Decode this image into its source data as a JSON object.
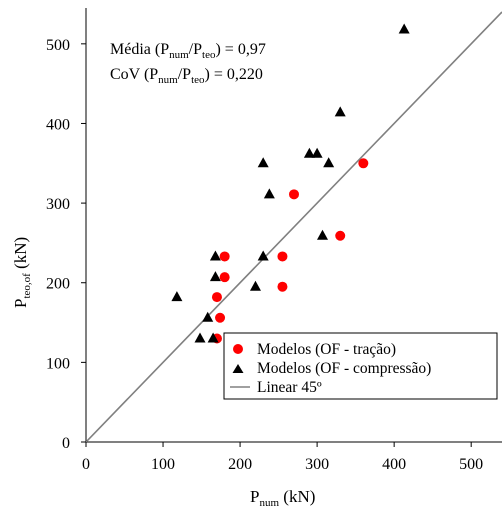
{
  "chart_data": {
    "type": "scatter",
    "xlabel": {
      "main": "P",
      "sub": "num",
      "unit": " (kN)"
    },
    "ylabel": {
      "main": "P",
      "sub": "teo,of",
      "unit": " (kN)"
    },
    "xlim": [
      0,
      540
    ],
    "ylim": [
      0,
      545
    ],
    "xticks": [
      "0",
      "100",
      "200",
      "300",
      "400",
      "500"
    ],
    "yticks": [
      "0",
      "100",
      "200",
      "300",
      "400",
      "500"
    ],
    "grid": false,
    "legend_position": "bottom-right",
    "annotations": [
      {
        "pre": "Média (P",
        "s1": "num",
        "mid": "/P",
        "s2": "teo",
        "post": ") = 0,97"
      },
      {
        "pre": "CoV (P",
        "s1": "num",
        "mid": "/P",
        "s2": "teo",
        "post": ") = 0,220"
      }
    ],
    "series": [
      {
        "name": "Modelos (OF - tração)",
        "marker": "circle",
        "color": "#ff0000",
        "points": [
          [
            170,
            130
          ],
          [
            174,
            156
          ],
          [
            170,
            182
          ],
          [
            180,
            207
          ],
          [
            180,
            233
          ],
          [
            255,
            233
          ],
          [
            255,
            195
          ],
          [
            270,
            311
          ],
          [
            330,
            259
          ],
          [
            360,
            350
          ]
        ]
      },
      {
        "name": "Modelos (OF - compressão)",
        "marker": "triangle",
        "color": "#000000",
        "points": [
          [
            118,
            182
          ],
          [
            148,
            130
          ],
          [
            158,
            156
          ],
          [
            165,
            130
          ],
          [
            168,
            233
          ],
          [
            168,
            207
          ],
          [
            220,
            195
          ],
          [
            230,
            233
          ],
          [
            230,
            350
          ],
          [
            238,
            311
          ],
          [
            290,
            362
          ],
          [
            300,
            362
          ],
          [
            307,
            259
          ],
          [
            315,
            350
          ],
          [
            330,
            414
          ],
          [
            413,
            518
          ]
        ]
      },
      {
        "name": "Linear 45º",
        "type": "line",
        "color": "#808080",
        "points": [
          [
            0,
            0
          ],
          [
            540,
            540
          ]
        ]
      }
    ]
  }
}
